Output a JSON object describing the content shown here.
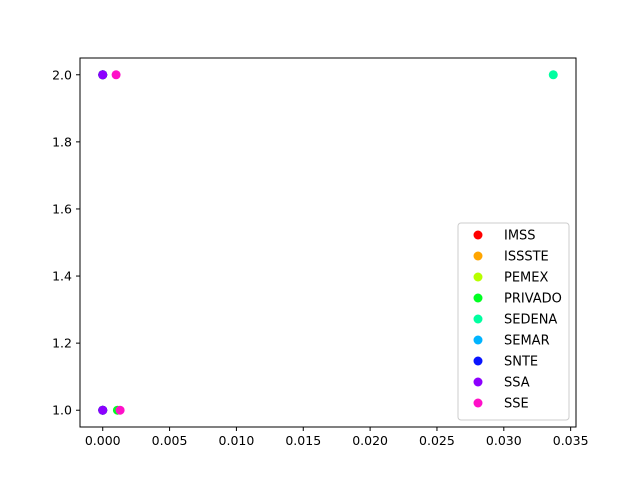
{
  "chart_data": {
    "type": "scatter",
    "title": "",
    "xlabel": "",
    "ylabel": "",
    "xlim": [
      -0.0017,
      0.0354
    ],
    "ylim": [
      0.95,
      2.05
    ],
    "xticks": [
      0.0,
      0.005,
      0.01,
      0.015,
      0.02,
      0.025,
      0.03,
      0.035
    ],
    "xtick_labels": [
      "0.000",
      "0.005",
      "0.010",
      "0.015",
      "0.020",
      "0.025",
      "0.030",
      "0.035"
    ],
    "yticks": [
      1.0,
      1.2,
      1.4,
      1.6,
      1.8,
      2.0
    ],
    "ytick_labels": [
      "1.0",
      "1.2",
      "1.4",
      "1.6",
      "1.8",
      "2.0"
    ],
    "grid": false,
    "legend": "lower-right",
    "series": [
      {
        "name": "IMSS",
        "color": "#ff0000",
        "points": [
          [
            0.0,
            1.0
          ],
          [
            0.0,
            2.0
          ]
        ]
      },
      {
        "name": "ISSSTE",
        "color": "#ffa500",
        "points": [
          [
            0.0,
            1.0
          ],
          [
            0.0,
            2.0
          ]
        ]
      },
      {
        "name": "PEMEX",
        "color": "#b7ff00",
        "points": [
          [
            0.0,
            1.0
          ],
          [
            0.0,
            2.0
          ]
        ]
      },
      {
        "name": "PRIVADO",
        "color": "#00ff22",
        "points": [
          [
            0.0011,
            1.0
          ],
          [
            0.0,
            2.0
          ]
        ]
      },
      {
        "name": "SEDENA",
        "color": "#00ffa0",
        "points": [
          [
            0.0,
            1.0
          ],
          [
            0.0337,
            2.0
          ]
        ]
      },
      {
        "name": "SEMAR",
        "color": "#00b4ff",
        "points": [
          [
            0.0,
            1.0
          ],
          [
            0.0,
            2.0
          ]
        ]
      },
      {
        "name": "SNTE",
        "color": "#0a14ff",
        "points": [
          [
            0.0,
            1.0
          ],
          [
            0.0,
            2.0
          ]
        ]
      },
      {
        "name": "SSA",
        "color": "#8c00ff",
        "points": [
          [
            0.0,
            1.0
          ],
          [
            0.0,
            2.0
          ]
        ]
      },
      {
        "name": "SSE",
        "color": "#ff10c8",
        "points": [
          [
            0.0013,
            1.0
          ],
          [
            0.001,
            2.0
          ]
        ]
      }
    ]
  }
}
